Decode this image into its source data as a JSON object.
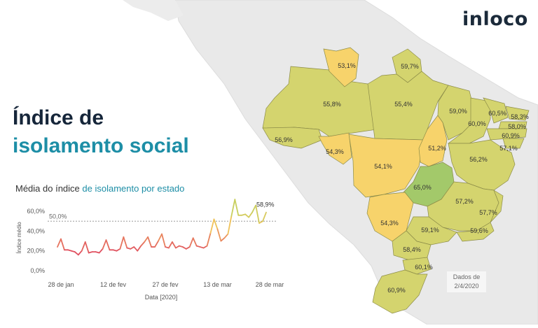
{
  "brand": "inloco",
  "title_line1": "Índice de",
  "title_line2": "isolamento social",
  "chart_subtitle_part1": "Média do índice ",
  "chart_subtitle_part2": "de isolamento por estado",
  "data_note_line1": "Dados de",
  "data_note_line2": "2/4/2020",
  "colors": {
    "title_dark": "#16263a",
    "title_accent": "#1d8ea6",
    "low": "#e05060",
    "mid": "#f2c15a",
    "high": "#c8cf5e",
    "state_green": "#a3c96a",
    "state_yellow_green": "#d4d46e",
    "state_yellow": "#f7d36b"
  },
  "map_labels": [
    {
      "state": "RR",
      "value": "53,1%"
    },
    {
      "state": "AP",
      "value": "59,7%"
    },
    {
      "state": "AM",
      "value": "55,8%"
    },
    {
      "state": "PA",
      "value": "55,4%"
    },
    {
      "state": "MA",
      "value": "59,0%"
    },
    {
      "state": "CE",
      "value": "60,5%"
    },
    {
      "state": "RN",
      "value": "58,3%"
    },
    {
      "state": "PI",
      "value": "60,0%"
    },
    {
      "state": "PB",
      "value": "58,0%"
    },
    {
      "state": "PE",
      "value": "60,9%"
    },
    {
      "state": "AL",
      "value": "57,1%"
    },
    {
      "state": "AC",
      "value": "56,9%"
    },
    {
      "state": "RO",
      "value": "54,3%"
    },
    {
      "state": "TO",
      "value": "51,2%"
    },
    {
      "state": "MT",
      "value": "54,1%"
    },
    {
      "state": "BA",
      "value": "56,2%"
    },
    {
      "state": "GO",
      "value": "65,0%"
    },
    {
      "state": "MG",
      "value": "57,2%"
    },
    {
      "state": "MS",
      "value": "54,3%"
    },
    {
      "state": "ES",
      "value": "57,7%"
    },
    {
      "state": "SP",
      "value": "59,1%"
    },
    {
      "state": "RJ",
      "value": "59,6%"
    },
    {
      "state": "PR",
      "value": "58,4%"
    },
    {
      "state": "SC",
      "value": "60,1%"
    },
    {
      "state": "RS",
      "value": "60,9%"
    }
  ],
  "chart_data": {
    "type": "line",
    "xlabel": "Data [2020]",
    "ylabel": "Índice médio",
    "ylim": [
      0,
      0.7
    ],
    "y_ticks": [
      "0,0%",
      "20,0%",
      "40,0%",
      "60,0%"
    ],
    "x_ticks": [
      "28 de jan",
      "12 de fev",
      "27 de fev",
      "13 de mar",
      "28 de mar"
    ],
    "reference_label": "50,0%",
    "reference_value": 0.5,
    "last_label": "58,9%",
    "series": [
      {
        "values": [
          0.24,
          0.32,
          0.21,
          0.21,
          0.2,
          0.19,
          0.16,
          0.2,
          0.29,
          0.18,
          0.19,
          0.19,
          0.18,
          0.22,
          0.31,
          0.21,
          0.21,
          0.2,
          0.22,
          0.34,
          0.23,
          0.22,
          0.24,
          0.2,
          0.25,
          0.29,
          0.34,
          0.24,
          0.24,
          0.3,
          0.37,
          0.24,
          0.23,
          0.29,
          0.23,
          0.25,
          0.24,
          0.22,
          0.24,
          0.33,
          0.25,
          0.24,
          0.23,
          0.25,
          0.38,
          0.52,
          0.42,
          0.3,
          0.33,
          0.37,
          0.55,
          0.72,
          0.56,
          0.56,
          0.57,
          0.54,
          0.59,
          0.66,
          0.48,
          0.5,
          0.589
        ]
      }
    ]
  }
}
